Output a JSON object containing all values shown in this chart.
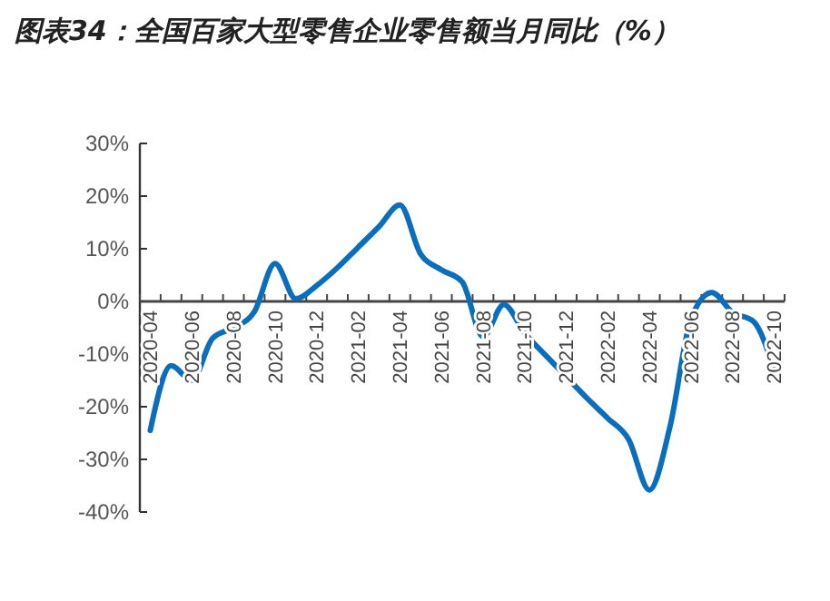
{
  "chart_data": {
    "type": "line",
    "title": "图表34：全国百家大型零售企业零售额当月同比（%）",
    "categories": [
      "2020-04",
      null,
      "2020-06",
      null,
      "2020-08",
      null,
      "2020-10",
      null,
      "2020-12",
      null,
      "2021-02",
      null,
      "2021-04",
      null,
      "2021-06",
      null,
      "2021-08",
      null,
      "2021-10",
      null,
      "2021-12",
      null,
      "2022-02",
      null,
      "2022-04",
      null,
      "2022-06",
      null,
      "2022-08",
      null,
      "2022-10"
    ],
    "series": [
      {
        "color": "#0a6ebd",
        "values": [
          -24.5,
          -12.2,
          -15,
          -7,
          -5,
          -2,
          7.2,
          0.5,
          3,
          6.4,
          10.3,
          14.2,
          18.3,
          9,
          6,
          3.7,
          -6.7,
          -0.6,
          -6,
          -10.2,
          -14.3,
          -18.4,
          -22.2,
          -26.2,
          -35.8,
          -23.6,
          -3.3,
          1.7,
          -2.1,
          -3.8,
          -13.1
        ]
      }
    ],
    "ylim": [
      -40,
      30
    ],
    "yticks": [
      {
        "value": -40,
        "label": "-40%"
      },
      {
        "value": -30,
        "label": "-30%"
      },
      {
        "value": -20,
        "label": "-20%"
      },
      {
        "value": -10,
        "label": "-10%"
      },
      {
        "value": 0,
        "label": "0%"
      },
      {
        "value": 10,
        "label": "10%"
      },
      {
        "value": 20,
        "label": "20%"
      },
      {
        "value": 30,
        "label": "30%"
      }
    ],
    "grid": false,
    "marker": "none",
    "line_style": "solid"
  }
}
